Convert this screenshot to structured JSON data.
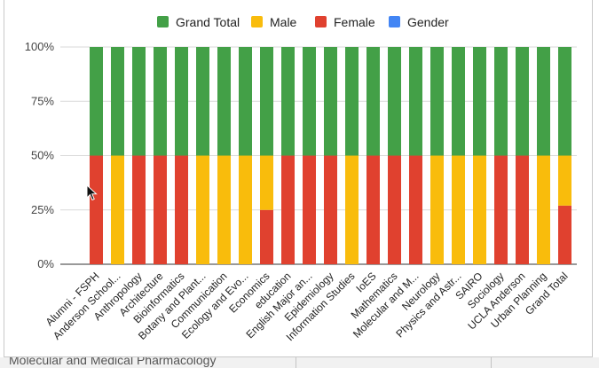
{
  "chart_data": {
    "type": "bar",
    "stacked": "percent",
    "title": "",
    "xlabel": "",
    "ylabel": "",
    "ylim": [
      0,
      100
    ],
    "yticks": [
      "0%",
      "25%",
      "50%",
      "75%",
      "100%"
    ],
    "grid": true,
    "legend_position": "top",
    "legend": [
      {
        "name": "Grand Total",
        "color": "#43a047"
      },
      {
        "name": "Male",
        "color": "#f9bc0c"
      },
      {
        "name": "Female",
        "color": "#e0412f"
      },
      {
        "name": "Gender",
        "color": "#4285f4"
      }
    ],
    "categories": [
      "Alumni - FSPH",
      "Anderson School...",
      "Anthropology",
      "Architecture",
      "Bioinformatics",
      "Botany and Plant...",
      "Communication",
      "Ecology and Evo...",
      "Economics",
      "education",
      "English Major an...",
      "Epidemiology",
      "Information Studies",
      "IoES",
      "Mathematics",
      "Molecular and M...",
      "Neurology",
      "Physics and Astr...",
      "SAIRO",
      "Sociology",
      "UCLA Anderson",
      "Urban Planning",
      "Grand Total"
    ],
    "series": [
      {
        "name": "Female",
        "color": "#e0412f",
        "values": [
          50,
          0,
          50,
          50,
          50,
          0,
          0,
          0,
          25,
          50,
          50,
          50,
          0,
          50,
          50,
          50,
          0,
          0,
          0,
          50,
          50,
          0,
          27
        ]
      },
      {
        "name": "Male",
        "color": "#f9bc0c",
        "values": [
          0,
          50,
          0,
          0,
          0,
          50,
          50,
          50,
          25,
          0,
          0,
          0,
          50,
          0,
          0,
          0,
          50,
          50,
          50,
          0,
          0,
          50,
          23
        ]
      },
      {
        "name": "Grand Total",
        "color": "#43a047",
        "values": [
          50,
          50,
          50,
          50,
          50,
          50,
          50,
          50,
          50,
          50,
          50,
          50,
          50,
          50,
          50,
          50,
          50,
          50,
          50,
          50,
          50,
          50,
          50
        ]
      }
    ]
  },
  "below": {
    "cut_text": "Molecular and Medical Pharmacology"
  }
}
